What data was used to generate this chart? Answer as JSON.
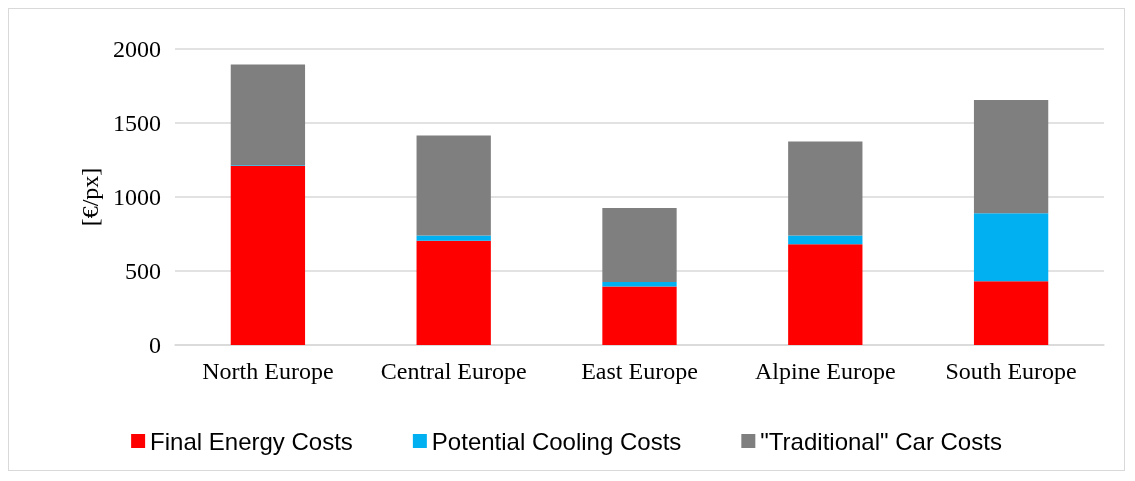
{
  "chart_data": {
    "type": "bar",
    "stacked": true,
    "ylabel": "[€/px]",
    "categories": [
      "North Europe",
      "Central Europe",
      "East Europe",
      "Alpine Europe",
      "South Europe"
    ],
    "series": [
      {
        "name": "Final Energy Costs",
        "color": "#ff0000",
        "values": [
          1210,
          705,
          395,
          680,
          430
        ]
      },
      {
        "name": "Potential Cooling Costs",
        "color": "#00b0f0",
        "values": [
          5,
          35,
          30,
          60,
          460
        ]
      },
      {
        "name": "\"Traditional\" Car Costs",
        "color": "#7f7f7f",
        "values": [
          680,
          675,
          500,
          635,
          765
        ]
      }
    ],
    "ylim": [
      0,
      2000
    ],
    "yticks": [
      0,
      500,
      1000,
      1500,
      2000
    ],
    "grid": "y",
    "legend": "bottom"
  }
}
